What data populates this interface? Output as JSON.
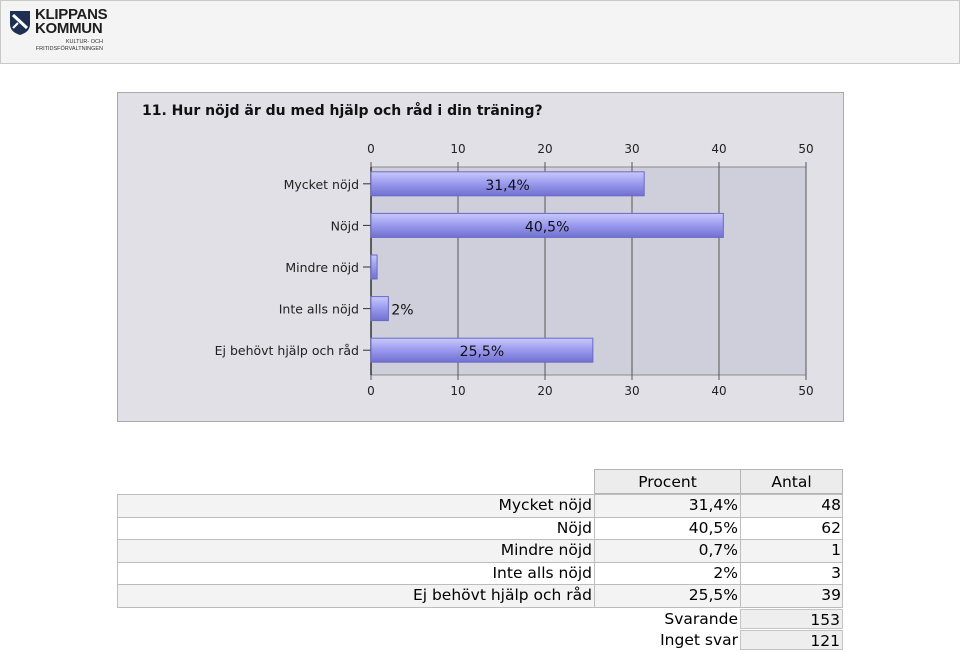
{
  "logo": {
    "name": "KLIPPANS\nKOMMUN",
    "department": "KULTUR- OCH\nFRITIDSFÖRVALTNINGEN",
    "icon": "coat-of-arms-icon"
  },
  "chart_data": {
    "type": "bar",
    "orientation": "horizontal",
    "title": "11. Hur nöjd är du med hjälp och råd i din träning?",
    "categories": [
      "Mycket nöjd",
      "Nöjd",
      "Mindre nöjd",
      "Inte alls nöjd",
      "Ej behövt hjälp och råd"
    ],
    "values": [
      31.4,
      40.5,
      0.7,
      2,
      25.5
    ],
    "data_labels": [
      "31,4%",
      "40,5%",
      "",
      "2%",
      "25,5%"
    ],
    "xlim": [
      0,
      50
    ],
    "ticks": [
      0,
      10,
      20,
      30,
      40,
      50
    ],
    "tick_labels": [
      "0",
      "10",
      "20",
      "30",
      "40",
      "50"
    ],
    "grid": true,
    "bar_color": "#9d9df0",
    "plot_bg": "#cfcedb"
  },
  "table": {
    "headers": [
      "Procent",
      "Antal"
    ],
    "rows": [
      {
        "label": "Mycket nöjd",
        "percent": "31,4%",
        "count": "48"
      },
      {
        "label": "Nöjd",
        "percent": "40,5%",
        "count": "62"
      },
      {
        "label": "Mindre nöjd",
        "percent": "0,7%",
        "count": "1"
      },
      {
        "label": "Inte alls nöjd",
        "percent": "2%",
        "count": "3"
      },
      {
        "label": "Ej behövt hjälp och råd",
        "percent": "25,5%",
        "count": "39"
      }
    ],
    "summary": [
      {
        "label": "Svarande",
        "value": "153"
      },
      {
        "label": "Inget svar",
        "value": "121"
      }
    ]
  }
}
